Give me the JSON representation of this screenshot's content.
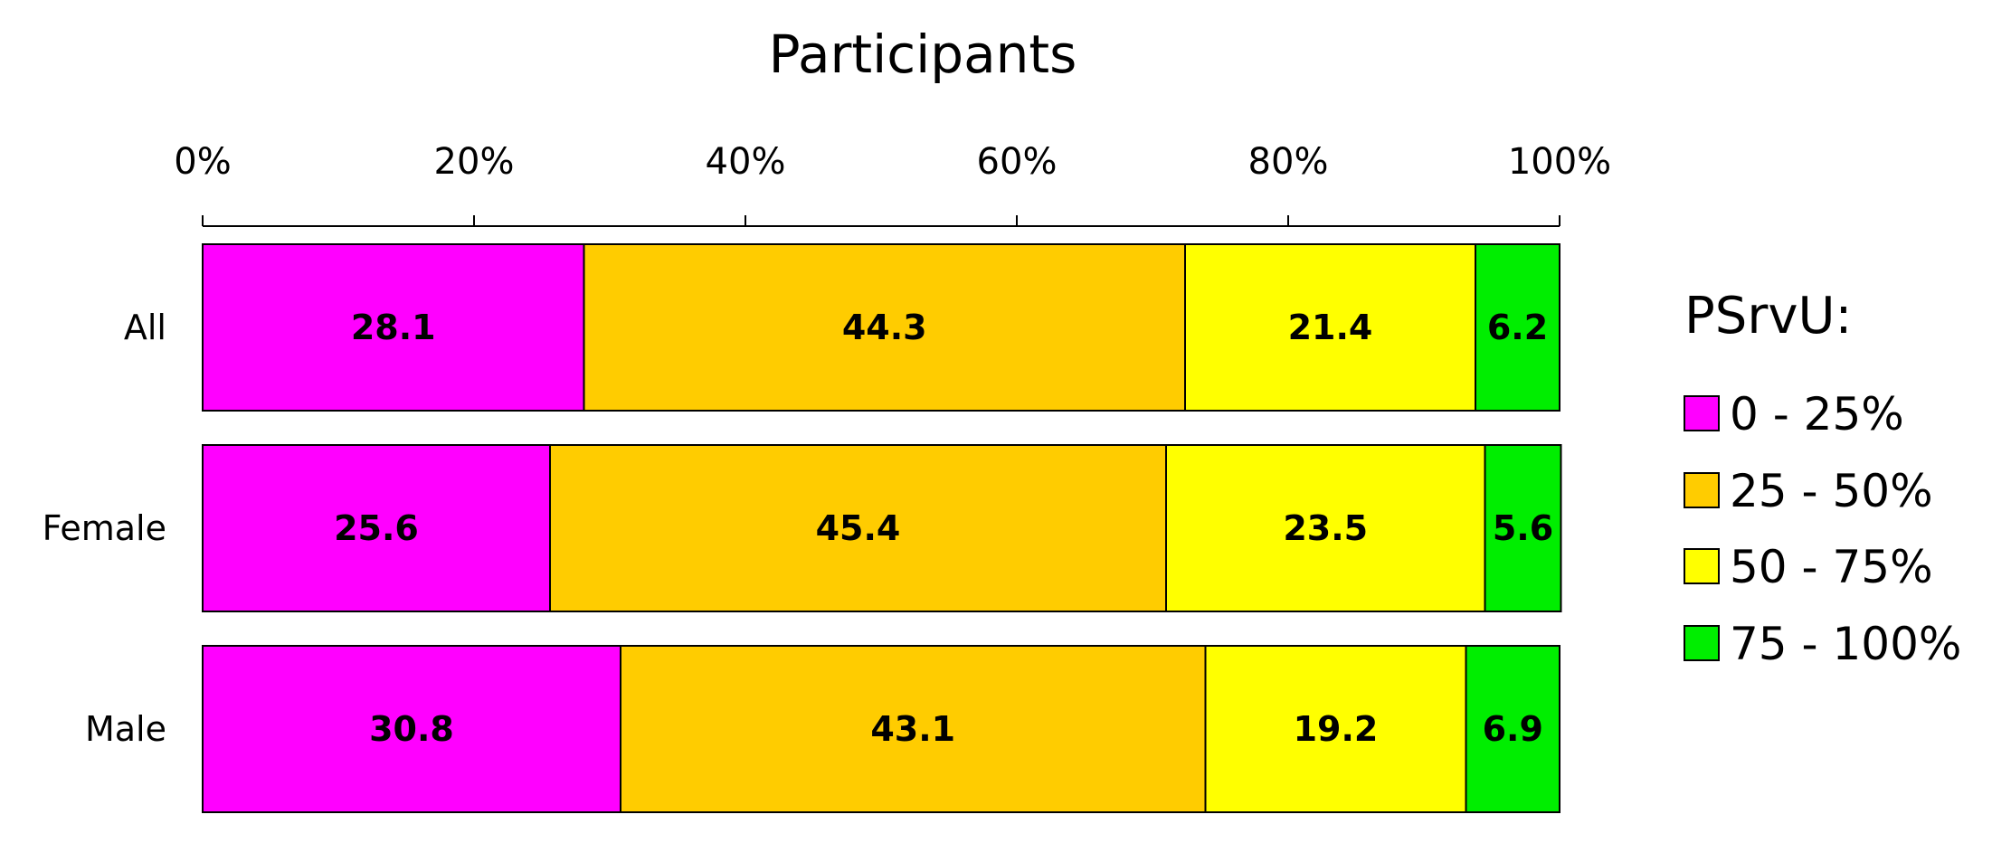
{
  "chart_data": {
    "type": "bar",
    "orientation": "horizontal",
    "stacked": true,
    "title": "Participants",
    "x_axis": {
      "position": "top",
      "range": [
        0,
        100
      ],
      "ticks": [
        "0%",
        "20%",
        "40%",
        "60%",
        "80%",
        "100%"
      ],
      "tick_values": [
        0,
        20,
        40,
        60,
        80,
        100
      ]
    },
    "categories": [
      "All",
      "Female",
      "Male"
    ],
    "series": [
      {
        "name": "0 - 25%",
        "color": "#ff00ff",
        "values": [
          28.1,
          25.6,
          30.8
        ],
        "labels": [
          "28.1",
          "25.6",
          "30.8"
        ]
      },
      {
        "name": "25 - 50%",
        "color": "#ffcc00",
        "values": [
          44.3,
          45.4,
          43.1
        ],
        "labels": [
          "44.3",
          "45.4",
          "43.1"
        ]
      },
      {
        "name": "50 - 75%",
        "color": "#ffff00",
        "values": [
          21.4,
          23.5,
          19.2
        ],
        "labels": [
          "21.4",
          "23.5",
          "19.2"
        ]
      },
      {
        "name": "75 - 100%",
        "color": "#00ee00",
        "values": [
          6.2,
          5.6,
          6.9
        ],
        "labels": [
          "6.2",
          "5.6",
          "6.9"
        ]
      }
    ],
    "legend": {
      "title": "PSrvU:",
      "position": "right"
    },
    "grid": false
  }
}
